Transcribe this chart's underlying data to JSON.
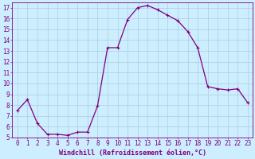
{
  "x": [
    0,
    1,
    2,
    3,
    4,
    5,
    6,
    7,
    8,
    9,
    10,
    11,
    12,
    13,
    14,
    15,
    16,
    17,
    18,
    19,
    20,
    21,
    22,
    23
  ],
  "y": [
    7.5,
    8.5,
    6.3,
    5.3,
    5.3,
    5.2,
    5.5,
    5.5,
    7.9,
    13.3,
    13.3,
    15.9,
    17.0,
    17.2,
    16.8,
    16.3,
    15.8,
    14.8,
    13.3,
    9.7,
    9.5,
    9.4,
    9.5,
    8.2
  ],
  "line_color": "#800080",
  "marker": "+",
  "marker_size": 3,
  "marker_linewidth": 0.8,
  "bg_color": "#cceeff",
  "grid_color": "#aaccdd",
  "xlabel": "Windchill (Refroidissement éolien,°C)",
  "xlabel_color": "#800080",
  "ylim": [
    5,
    17.5
  ],
  "xlim": [
    -0.5,
    23.5
  ],
  "yticks": [
    5,
    6,
    7,
    8,
    9,
    10,
    11,
    12,
    13,
    14,
    15,
    16,
    17
  ],
  "xticks": [
    0,
    1,
    2,
    3,
    4,
    5,
    6,
    7,
    8,
    9,
    10,
    11,
    12,
    13,
    14,
    15,
    16,
    17,
    18,
    19,
    20,
    21,
    22,
    23
  ],
  "tick_color": "#800080",
  "spine_color": "#800080",
  "tick_fontsize": 5.5,
  "xlabel_fontsize": 6.0,
  "linewidth": 0.9
}
